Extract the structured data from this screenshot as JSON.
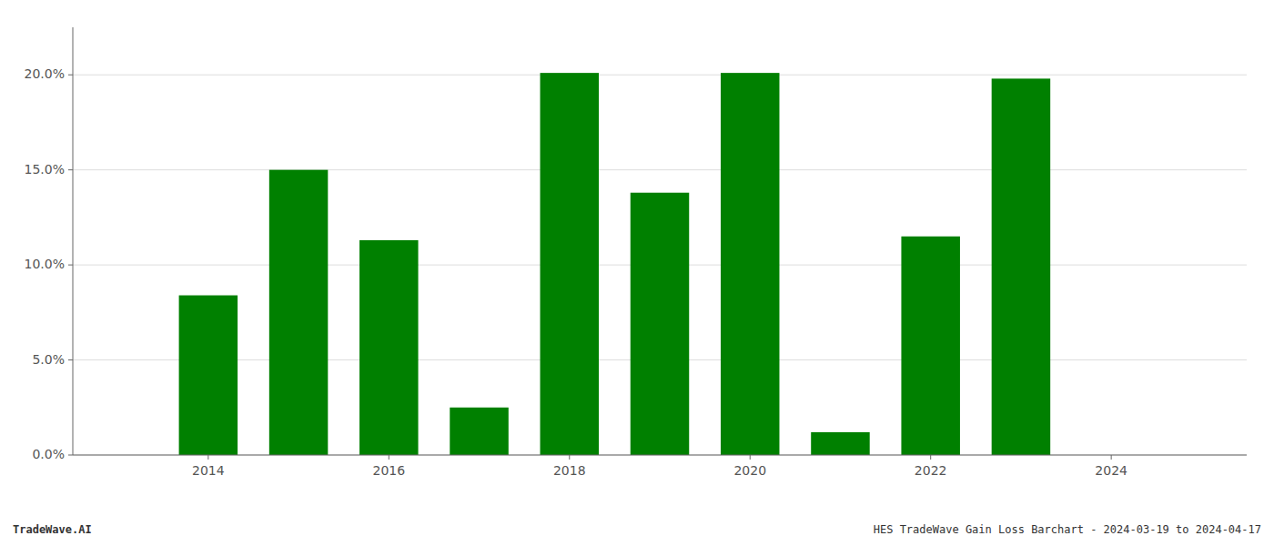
{
  "chart_data": {
    "type": "bar",
    "x": [
      2014,
      2015,
      2016,
      2017,
      2018,
      2019,
      2020,
      2021,
      2022,
      2023
    ],
    "values": [
      0.084,
      0.15,
      0.113,
      0.025,
      0.201,
      0.138,
      0.201,
      0.012,
      0.115,
      0.198
    ],
    "color": "#008000",
    "xlim": [
      2012.5,
      2025.5
    ],
    "xticks": [
      2014,
      2016,
      2018,
      2020,
      2022,
      2024
    ],
    "ylim": [
      0.0,
      0.225
    ],
    "yticks": [
      {
        "value": 0.0,
        "label": "0.0%"
      },
      {
        "value": 0.05,
        "label": "5.0%"
      },
      {
        "value": 0.1,
        "label": "10.0%"
      },
      {
        "value": 0.15,
        "label": "15.0%"
      },
      {
        "value": 0.2,
        "label": "20.0%"
      }
    ],
    "grid": true,
    "annotations": [
      "TradeWave.AI",
      "HES TradeWave Gain Loss Barchart - 2024-03-19 to 2024-04-17"
    ]
  }
}
